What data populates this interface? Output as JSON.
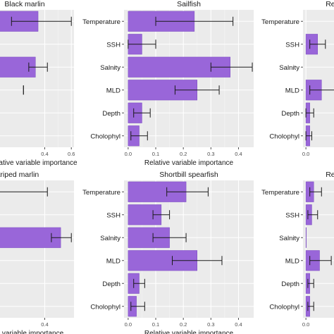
{
  "palette": {
    "bar_fill": "#9966d9",
    "bar_outline": "#7a4cc0",
    "panel_bg": "#ebebeb",
    "grid_major": "#ffffff",
    "grid_minor": "#f5f5f5",
    "error_bar": "#1a1a1a",
    "text": "#1a1a1a",
    "tick_text": "#4d4d4d"
  },
  "chart_data": [
    {
      "type": "bar",
      "orientation": "horizontal",
      "title": "Black marlin",
      "xlabel": "Relative variable importance",
      "xlim": [
        0,
        0.62
      ],
      "xticks": [
        0.4,
        0.6
      ],
      "grid": true,
      "categories": [
        "Temperature",
        "SSH",
        "Salnity",
        "MLD",
        "Depth",
        "Cholophyl"
      ],
      "values": [
        0.35,
        null,
        0.33,
        null,
        null,
        null
      ],
      "err_low": [
        0.15,
        null,
        0.28,
        0.24,
        null,
        null
      ],
      "err_high": [
        0.6,
        null,
        0.42,
        0.24,
        null,
        null
      ]
    },
    {
      "type": "bar",
      "orientation": "horizontal",
      "title": "Sailfish",
      "xlabel": "Relative variable importance",
      "xlim": [
        -0.015,
        0.455
      ],
      "xticks": [
        0.0,
        0.1,
        0.2,
        0.3,
        0.4
      ],
      "grid": true,
      "categories": [
        "Temperature",
        "SSH",
        "Salnity",
        "MLD",
        "Depth",
        "Cholophyl"
      ],
      "values": [
        0.24,
        0.05,
        0.37,
        0.25,
        0.05,
        0.04
      ],
      "err_low": [
        0.1,
        0.0,
        0.3,
        0.17,
        0.02,
        0.01
      ],
      "err_high": [
        0.38,
        0.1,
        0.45,
        0.33,
        0.08,
        0.07
      ]
    },
    {
      "type": "bar",
      "orientation": "horizontal",
      "title": "Rela",
      "xlabel": "Rela",
      "xlim": [
        -0.015,
        0.455
      ],
      "xticks": [
        0.0
      ],
      "grid": true,
      "categories": [
        "Temperature",
        "SSH",
        "Salnity",
        "MLD",
        "Depth",
        "Cholophyl"
      ],
      "values": [
        null,
        0.06,
        null,
        0.08,
        0.02,
        0.02
      ],
      "err_low": [
        null,
        0.02,
        null,
        0.02,
        0.0,
        0.0
      ],
      "err_high": [
        null,
        0.1,
        null,
        0.16,
        0.04,
        0.03
      ]
    },
    {
      "type": "bar",
      "orientation": "horizontal",
      "title": "-striped marlin",
      "xlabel": "variable importance",
      "xlim": [
        0,
        0.62
      ],
      "xticks": [
        0.4
      ],
      "grid": true,
      "categories": [
        "Temperature",
        "SSH",
        "Salnity",
        "MLD",
        "Depth",
        "Cholophyl"
      ],
      "values": [
        0.02,
        null,
        0.52,
        null,
        null,
        null
      ],
      "err_low": [
        0.0,
        null,
        0.45,
        null,
        null,
        null
      ],
      "err_high": [
        0.42,
        null,
        0.6,
        null,
        null,
        null
      ]
    },
    {
      "type": "bar",
      "orientation": "horizontal",
      "title": "Shortbill spearfish",
      "xlabel": "Relative variable importance",
      "xlim": [
        -0.015,
        0.455
      ],
      "xticks": [
        0.0,
        0.1,
        0.2,
        0.3,
        0.4
      ],
      "grid": true,
      "categories": [
        "Temperature",
        "SSH",
        "Salnity",
        "MLD",
        "Depth",
        "Cholophyl"
      ],
      "values": [
        0.21,
        0.12,
        0.15,
        0.25,
        0.04,
        0.03
      ],
      "err_low": [
        0.14,
        0.09,
        0.09,
        0.16,
        0.02,
        0.01
      ],
      "err_high": [
        0.29,
        0.15,
        0.21,
        0.34,
        0.06,
        0.06
      ]
    },
    {
      "type": "bar",
      "orientation": "horizontal",
      "title": "Rela",
      "xlabel": "",
      "xlim": [
        -0.015,
        0.455
      ],
      "xticks": [
        0.0
      ],
      "grid": true,
      "categories": [
        "Temperature",
        "SSH",
        "Salnity",
        "MLD",
        "Depth",
        "Cholophyl"
      ],
      "values": [
        0.04,
        0.03,
        0.0,
        0.07,
        0.02,
        0.02
      ],
      "err_low": [
        0.02,
        0.01,
        null,
        0.02,
        0.01,
        0.01
      ],
      "err_high": [
        0.08,
        0.06,
        null,
        0.13,
        0.04,
        0.04
      ]
    }
  ]
}
